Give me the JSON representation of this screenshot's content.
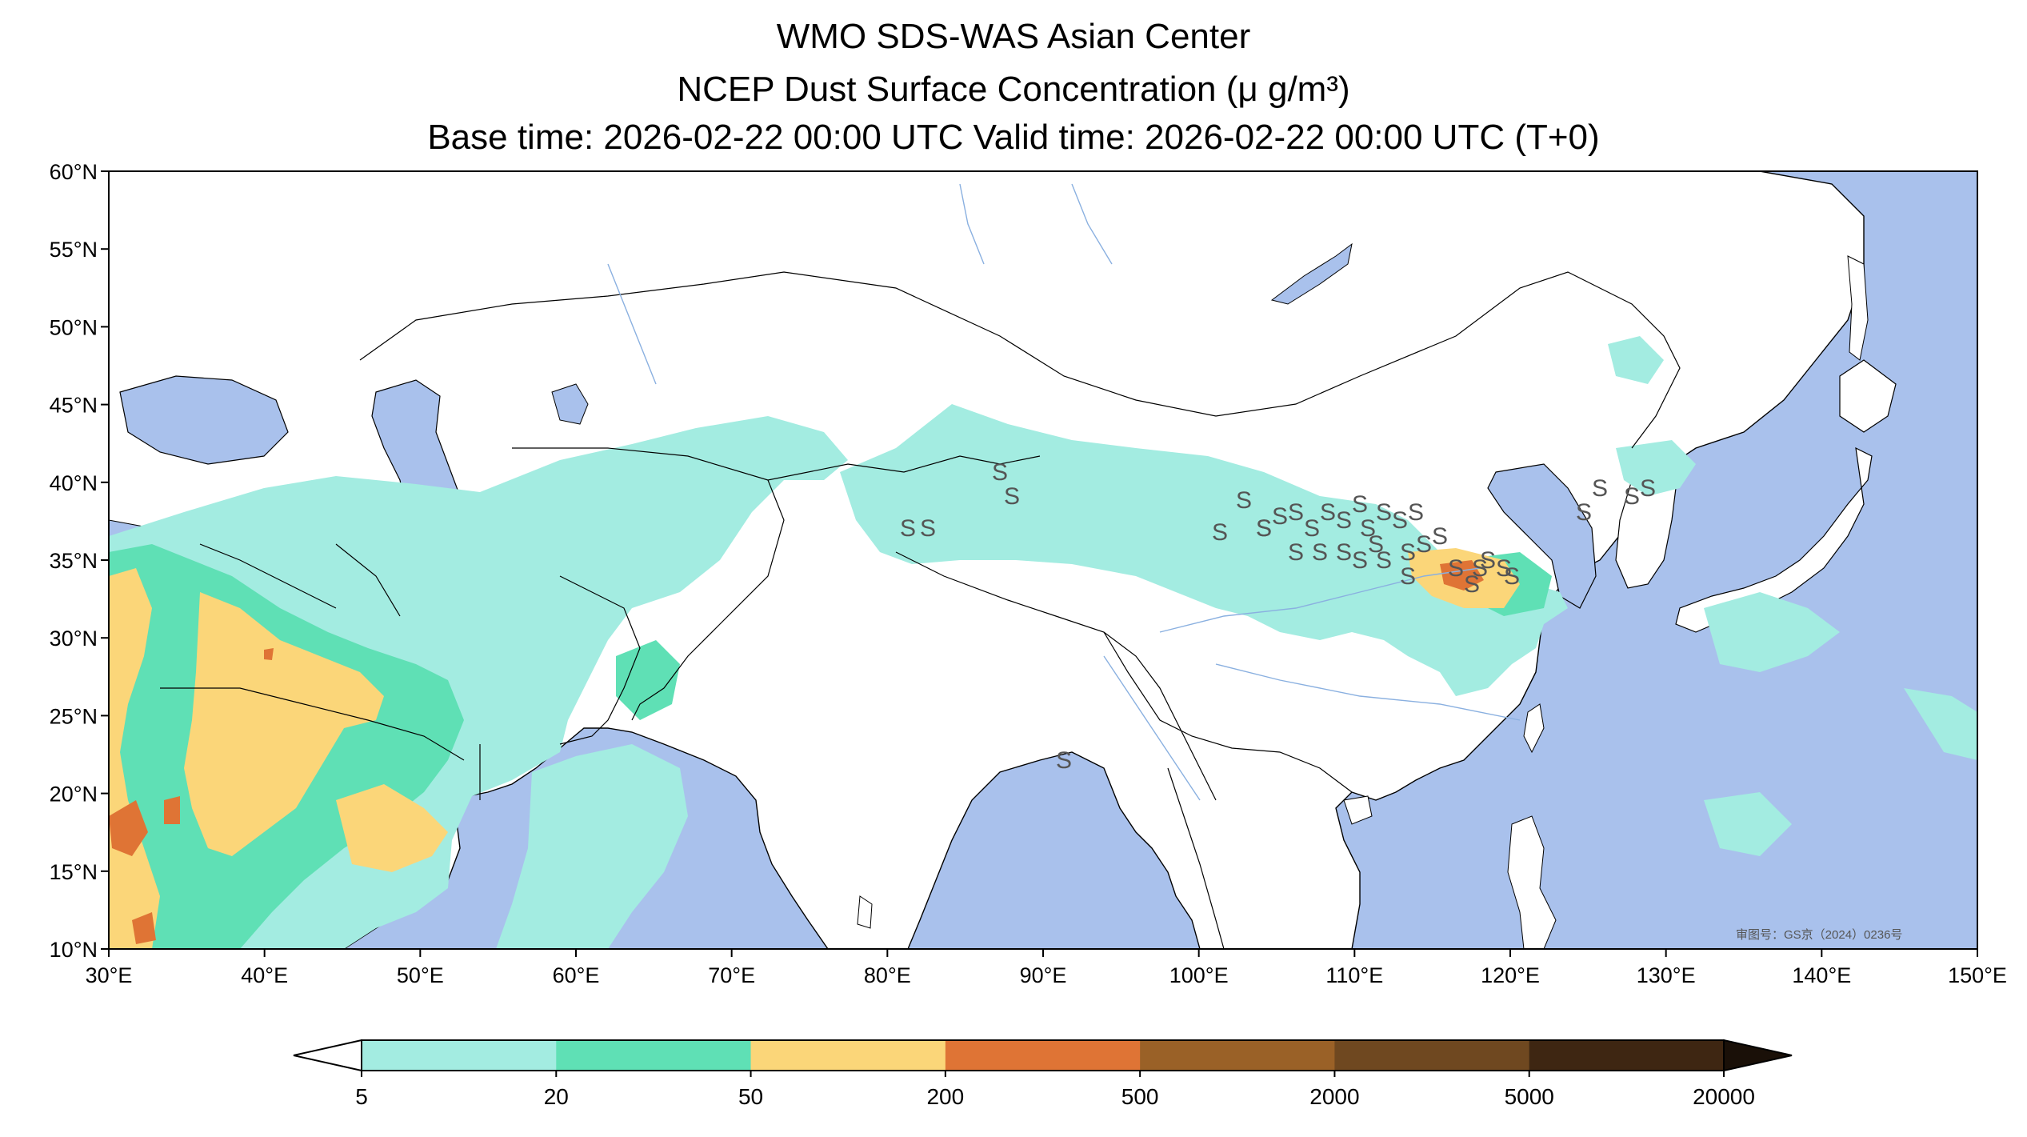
{
  "header": {
    "title": "WMO SDS-WAS Asian Center",
    "subtitle": "NCEP Dust Surface Concentration (μ g/m³)",
    "times": "Base time: 2026-02-22 00:00 UTC Valid time: 2026-02-22 00:00 UTC (T+0)"
  },
  "map": {
    "lon_range": [
      30,
      150
    ],
    "lat_range": [
      10,
      60
    ],
    "x_ticks": [
      "30°E",
      "40°E",
      "50°E",
      "60°E",
      "70°E",
      "80°E",
      "90°E",
      "100°E",
      "110°E",
      "120°E",
      "130°E",
      "140°E",
      "150°E"
    ],
    "y_ticks": [
      "60°N",
      "55°N",
      "50°N",
      "45°N",
      "40°N",
      "35°N",
      "30°N",
      "25°N",
      "20°N",
      "15°N",
      "10°N"
    ],
    "ocean_color": "#a9c1ec",
    "land_color": "#ffffff",
    "station_symbol": "S",
    "approval_note": "审图号：GS京（2024）0236号"
  },
  "colorbar": {
    "ticks": [
      "5",
      "20",
      "50",
      "200",
      "500",
      "2000",
      "5000",
      "20000"
    ],
    "colors": [
      "#a3ece1",
      "#5fe0b5",
      "#fbd679",
      "#df7435",
      "#9a6127",
      "#6f4820",
      "#3e2612"
    ],
    "under_color": "#ffffff",
    "over_color": "#1a1008"
  }
}
